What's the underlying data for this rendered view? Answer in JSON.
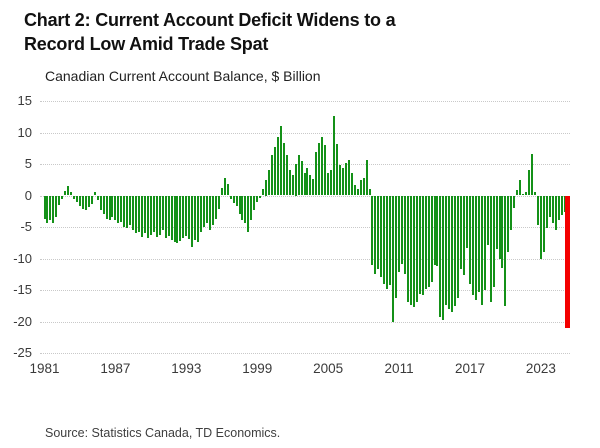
{
  "header": {
    "title_line1": "Chart 2: Current Account Deficit Widens to a",
    "title_line2": "Record Low Amid Trade Spat"
  },
  "footer": {
    "source": "Source: Statistics Canada, TD Economics."
  },
  "chart_data": {
    "type": "bar",
    "title": "Canadian Current Account Balance, $ Billion",
    "xlabel": "",
    "ylabel": "$ Billion",
    "frequency": "quarterly",
    "x_start": "1981Q1",
    "x_end": "2025Q2",
    "ylim": [
      -25,
      15
    ],
    "yticks": [
      15,
      10,
      5,
      0,
      -5,
      -10,
      -15,
      -20,
      -25
    ],
    "xticks": [
      1981,
      1987,
      1993,
      1999,
      2005,
      2011,
      2017,
      2023
    ],
    "grid": "horizontal-dotted",
    "legend": "none",
    "bar_color": "#149118",
    "highlight_color": "#f40000",
    "highlight_last_bar": true,
    "values": [
      -3.7,
      -4.4,
      -3.9,
      -4.3,
      -3.4,
      -1.5,
      -0.5,
      0.7,
      1.5,
      0.6,
      -0.5,
      -1.0,
      -1.6,
      -2.1,
      -2.3,
      -1.8,
      -1.3,
      0.6,
      -0.7,
      -2.3,
      -2.9,
      -3.7,
      -3.9,
      -3.4,
      -3.9,
      -4.4,
      -4.2,
      -5.0,
      -5.2,
      -4.7,
      -5.5,
      -6.0,
      -5.8,
      -6.6,
      -6.0,
      -6.8,
      -6.3,
      -5.8,
      -6.6,
      -6.2,
      -5.5,
      -6.8,
      -6.4,
      -7.1,
      -7.4,
      -7.6,
      -7.2,
      -6.8,
      -6.4,
      -6.9,
      -8.1,
      -7.1,
      -7.4,
      -5.8,
      -5.0,
      -4.4,
      -5.5,
      -4.7,
      -3.7,
      -2.1,
      1.2,
      2.8,
      1.9,
      -0.5,
      -1.2,
      -1.6,
      -2.9,
      -3.9,
      -4.4,
      -5.8,
      -3.9,
      -2.3,
      -1.0,
      -0.4,
      1.1,
      2.5,
      4.0,
      6.4,
      7.7,
      9.3,
      11.0,
      8.3,
      6.4,
      4.0,
      3.2,
      5.0,
      6.5,
      5.5,
      3.6,
      4.4,
      3.2,
      2.6,
      6.9,
      8.3,
      9.3,
      8.0,
      3.5,
      4.0,
      12.6,
      8.1,
      4.8,
      4.3,
      5.1,
      5.6,
      3.5,
      1.6,
      1.1,
      2.4,
      2.7,
      5.6,
      1.1,
      -11.0,
      -12.4,
      -11.6,
      -12.9,
      -14.0,
      -14.8,
      -14.2,
      -20.0,
      -16.3,
      -12.1,
      -10.8,
      -12.4,
      -16.9,
      -17.4,
      -17.7,
      -16.9,
      -15.6,
      -15.8,
      -14.8,
      -14.5,
      -13.7,
      -11.1,
      -11.2,
      -19.3,
      -19.7,
      -17.4,
      -18.0,
      -18.5,
      -17.5,
      -16.3,
      -11.6,
      -12.6,
      -8.4,
      -14.0,
      -15.8,
      -16.6,
      -15.3,
      -17.4,
      -15.0,
      -7.9,
      -16.9,
      -14.5,
      -8.5,
      -10.0,
      -11.5,
      -17.5,
      -9.0,
      -5.5,
      -2.0,
      0.8,
      2.4,
      0.3,
      0.5,
      4.0,
      6.6,
      0.5,
      -4.7,
      -10.0,
      -8.9,
      -5.2,
      -3.4,
      -4.4,
      -5.5,
      -3.9,
      -3.1,
      -2.6,
      -21.0
    ]
  }
}
